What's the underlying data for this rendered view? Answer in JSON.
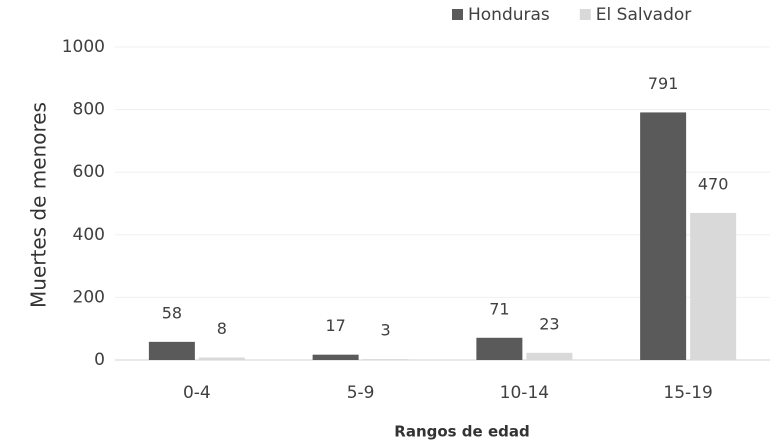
{
  "chart_data": {
    "type": "bar",
    "y_label": "Muertes de menores",
    "x_label": "Rangos de edad",
    "categories": [
      "0-4",
      "5-9",
      "10-14",
      "15-19"
    ],
    "series": [
      {
        "name": "Honduras",
        "color": "#5a5a5a",
        "values": [
          58,
          17,
          71,
          791
        ]
      },
      {
        "name": "El Salvador",
        "color": "#d9d9d9",
        "values": [
          8,
          3,
          23,
          470
        ]
      }
    ],
    "ylim": [
      0,
      1000
    ],
    "yticks": [
      0,
      200,
      400,
      600,
      800,
      1000
    ],
    "grid": true,
    "legend": "top-right"
  }
}
